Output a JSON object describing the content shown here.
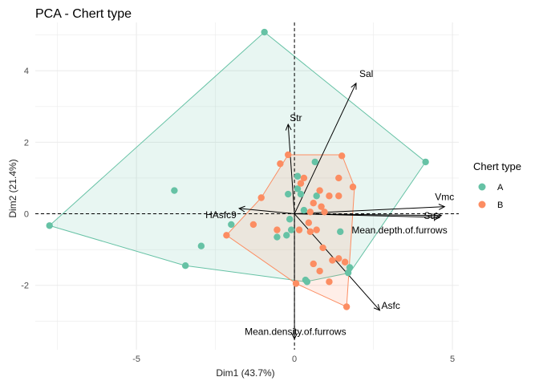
{
  "colors": {
    "A": "#66c2a5",
    "B": "#fc8d62",
    "grid": "#ebebeb",
    "arrow": "#000000"
  },
  "chart_data": {
    "type": "scatter",
    "title": "PCA - Chert type",
    "xlabel": "Dim1 (43.7%)",
    "ylabel": "Dim2 (21.4%)",
    "xlim": [
      -8.2,
      5.2
    ],
    "ylim": [
      -3.8,
      5.35
    ],
    "x_ticks": [
      -5,
      0,
      5
    ],
    "x_tick_labels": [
      "-5",
      "0",
      "5"
    ],
    "y_ticks": [
      -2,
      0,
      2,
      4
    ],
    "y_tick_labels": [
      "-2",
      "0",
      "2",
      "4"
    ],
    "grid": true,
    "legend": {
      "title": "Chert type",
      "position": "right",
      "entries": [
        "A",
        "B"
      ]
    },
    "series": [
      {
        "name": "A",
        "color": "#66c2a5",
        "points": [
          [
            -7.75,
            -0.33
          ],
          [
            -0.95,
            5.08
          ],
          [
            4.15,
            1.45
          ],
          [
            -3.8,
            0.65
          ],
          [
            -3.45,
            -1.45
          ],
          [
            -2.95,
            -0.9
          ],
          [
            -2.0,
            -0.3
          ],
          [
            0.35,
            -1.85
          ],
          [
            0.4,
            -1.9
          ],
          [
            1.75,
            -1.5
          ],
          [
            1.7,
            -1.65
          ],
          [
            1.45,
            -0.5
          ],
          [
            0.65,
            1.45
          ],
          [
            0.1,
            1.05
          ],
          [
            0.1,
            0.7
          ],
          [
            0.2,
            0.55
          ],
          [
            -0.2,
            0.55
          ],
          [
            0.3,
            0.1
          ],
          [
            -0.15,
            -0.15
          ],
          [
            -0.25,
            -0.6
          ],
          [
            -0.55,
            -0.65
          ],
          [
            -0.1,
            -0.45
          ],
          [
            0.7,
            0.5
          ]
        ],
        "hull": [
          [
            -0.95,
            5.08
          ],
          [
            4.15,
            1.45
          ],
          [
            1.75,
            -1.65
          ],
          [
            0.35,
            -1.9
          ],
          [
            -3.45,
            -1.45
          ],
          [
            -7.75,
            -0.33
          ]
        ]
      },
      {
        "name": "B",
        "color": "#fc8d62",
        "points": [
          [
            -0.2,
            1.65
          ],
          [
            1.5,
            1.62
          ],
          [
            -0.45,
            1.4
          ],
          [
            1.4,
            1.0
          ],
          [
            0.3,
            1.0
          ],
          [
            0.2,
            0.85
          ],
          [
            1.85,
            0.75
          ],
          [
            -1.05,
            0.45
          ],
          [
            0.8,
            0.65
          ],
          [
            1.1,
            0.5
          ],
          [
            1.4,
            0.5
          ],
          [
            0.6,
            0.3
          ],
          [
            0.85,
            0.2
          ],
          [
            0.5,
            0.05
          ],
          [
            0.95,
            0.05
          ],
          [
            0.45,
            -0.25
          ],
          [
            -1.3,
            -0.3
          ],
          [
            -2.15,
            -0.6
          ],
          [
            0.5,
            -0.5
          ],
          [
            0.7,
            -0.45
          ],
          [
            0.9,
            -0.95
          ],
          [
            0.15,
            -0.45
          ],
          [
            -0.55,
            -0.45
          ],
          [
            1.2,
            -1.3
          ],
          [
            1.6,
            -1.35
          ],
          [
            1.4,
            -1.25
          ],
          [
            0.6,
            -1.4
          ],
          [
            0.8,
            -1.6
          ],
          [
            1.1,
            -1.9
          ],
          [
            1.65,
            -2.6
          ],
          [
            0.05,
            -1.95
          ]
        ],
        "hull": [
          [
            -0.2,
            1.65
          ],
          [
            1.5,
            1.65
          ],
          [
            1.9,
            0.75
          ],
          [
            1.65,
            -2.6
          ],
          [
            0.05,
            -1.95
          ],
          [
            -2.15,
            -0.6
          ],
          [
            -1.05,
            0.45
          ]
        ]
      }
    ],
    "variables": [
      {
        "name": "Sal",
        "x": 1.95,
        "y": 3.65
      },
      {
        "name": "Str",
        "x": -0.2,
        "y": 2.5
      },
      {
        "name": "Vmc",
        "x": 4.75,
        "y": 0.2
      },
      {
        "name": "Sq",
        "x": 4.6,
        "y": -0.1
      },
      {
        "name": "Mean.depth.of.furrows",
        "x": 4.65,
        "y": -0.05
      },
      {
        "name": "HAsfc9",
        "x": -1.75,
        "y": 0.15
      },
      {
        "name": "Asfc",
        "x": 2.7,
        "y": -2.7
      },
      {
        "name": "Mean.density.of.furrows",
        "x": 0.0,
        "y": -3.5
      }
    ]
  }
}
